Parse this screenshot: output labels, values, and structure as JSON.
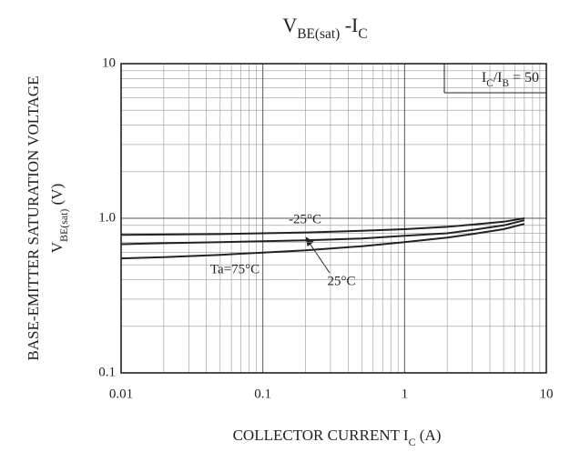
{
  "chart_data": {
    "type": "line",
    "title": [
      {
        "text": "V"
      },
      {
        "text": "BE(sat)",
        "sub": true
      },
      {
        "text": " -I"
      },
      {
        "text": "C",
        "sub": true
      }
    ],
    "ylabel": [
      {
        "text": "BASE-EMITTER SATURATION VOLTAGE"
      }
    ],
    "ylabel2": [
      {
        "text": "V"
      },
      {
        "text": "BE(sat)",
        "sub": true
      },
      {
        "text": " (V)"
      }
    ],
    "xlabel": [
      {
        "text": "COLLECTOR CURRENT I"
      },
      {
        "text": "C",
        "sub": true
      },
      {
        "text": " (A)"
      }
    ],
    "annotation": [
      {
        "text": "I"
      },
      {
        "text": "C",
        "sub": true
      },
      {
        "text": "/I"
      },
      {
        "text": "B",
        "sub": true
      },
      {
        "text": " = 50"
      }
    ],
    "x": [
      0.01,
      0.02,
      0.05,
      0.1,
      0.2,
      0.5,
      1,
      2,
      3,
      5,
      7
    ],
    "series": [
      {
        "name": "-25°C",
        "color": "#222",
        "values": [
          0.78,
          0.785,
          0.79,
          0.8,
          0.81,
          0.83,
          0.85,
          0.88,
          0.91,
          0.95,
          1.0
        ]
      },
      {
        "name": "25°C",
        "color": "#222",
        "values": [
          0.68,
          0.69,
          0.7,
          0.71,
          0.72,
          0.74,
          0.77,
          0.8,
          0.84,
          0.9,
          0.97
        ]
      },
      {
        "name": "Ta=75°C",
        "color": "#222",
        "values": [
          0.55,
          0.56,
          0.58,
          0.6,
          0.62,
          0.66,
          0.7,
          0.75,
          0.79,
          0.85,
          0.92
        ]
      }
    ],
    "xlim": [
      0.01,
      10
    ],
    "ylim": [
      0.1,
      10
    ],
    "xticks": [
      0.01,
      0.1,
      1,
      10
    ],
    "yticks": [
      0.1,
      {
        "value": 1,
        "label": "1.0"
      },
      10
    ],
    "log_x": true,
    "log_y": true,
    "grid": true
  }
}
